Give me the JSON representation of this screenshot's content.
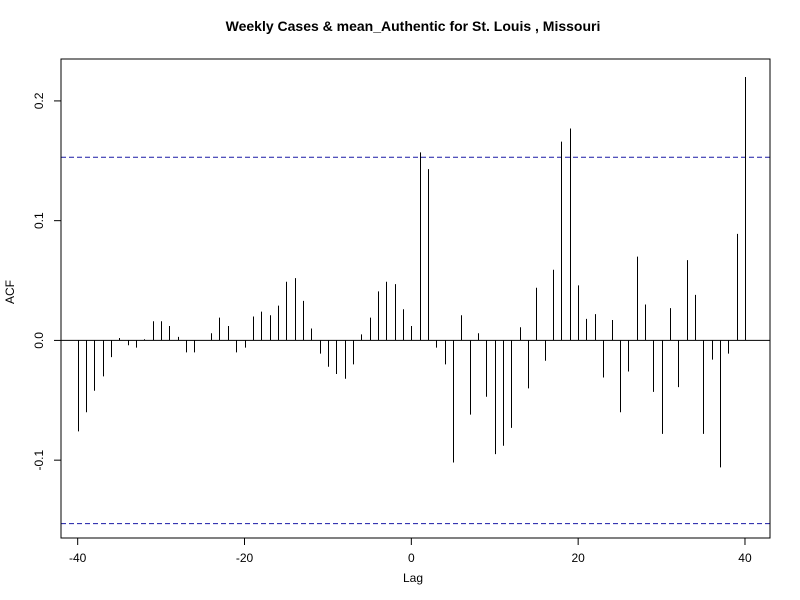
{
  "chart_data": {
    "type": "bar",
    "title": "Weekly Cases & mean_Authentic for St. Louis , Missouri",
    "xlabel": "Lag",
    "ylabel": "ACF",
    "xlim": [
      -42,
      43
    ],
    "ylim": [
      -0.165,
      0.235
    ],
    "x_ticks": [
      -40,
      -20,
      0,
      20,
      40
    ],
    "x_tick_labels": [
      "-40",
      "-20",
      "0",
      "20",
      "40"
    ],
    "y_ticks": [
      -0.1,
      0.0,
      0.1,
      0.2
    ],
    "y_tick_labels": [
      "-0.1",
      "0.0",
      "0.1",
      "0.2"
    ],
    "confidence_bounds": [
      0.153,
      -0.153
    ],
    "grid": false,
    "series": [
      {
        "x": [
          -40,
          -39,
          -38,
          -37,
          -36,
          -35,
          -34,
          -33,
          -32,
          -31,
          -30,
          -29,
          -28,
          -27,
          -26,
          -25,
          -24,
          -23,
          -22,
          -21,
          -20,
          -19,
          -18,
          -17,
          -16,
          -15,
          -14,
          -13,
          -12,
          -11,
          -10,
          -9,
          -8,
          -7,
          -6,
          -5,
          -4,
          -3,
          -2,
          -1,
          0,
          1,
          2,
          3,
          4,
          5,
          6,
          7,
          8,
          9,
          10,
          11,
          12,
          13,
          14,
          15,
          16,
          17,
          18,
          19,
          20,
          21,
          22,
          23,
          24,
          25,
          26,
          27,
          28,
          29,
          30,
          31,
          32,
          33,
          34,
          35,
          36,
          37,
          38,
          39,
          40
        ],
        "values": [
          -0.076,
          -0.06,
          -0.042,
          -0.03,
          -0.014,
          0.002,
          -0.004,
          -0.006,
          0.001,
          0.016,
          0.016,
          0.012,
          0.003,
          -0.01,
          -0.01,
          0.0,
          0.006,
          0.019,
          0.012,
          -0.01,
          -0.006,
          0.02,
          0.024,
          0.021,
          0.029,
          0.049,
          0.052,
          0.033,
          0.01,
          -0.011,
          -0.022,
          -0.028,
          -0.032,
          -0.02,
          0.005,
          0.019,
          0.041,
          0.049,
          0.047,
          0.026,
          0.012,
          0.157,
          0.143,
          -0.006,
          -0.02,
          -0.102,
          0.021,
          -0.062,
          0.006,
          -0.047,
          -0.095,
          -0.088,
          -0.073,
          0.011,
          -0.04,
          0.044,
          -0.017,
          0.059,
          0.166,
          0.177,
          0.046,
          0.018,
          0.022,
          -0.031,
          0.017,
          -0.06,
          -0.026,
          0.07,
          0.03,
          -0.043,
          -0.078,
          0.027,
          -0.039,
          0.067,
          0.038,
          -0.078,
          -0.016,
          -0.106,
          -0.011,
          0.089,
          0.22
        ]
      }
    ]
  }
}
